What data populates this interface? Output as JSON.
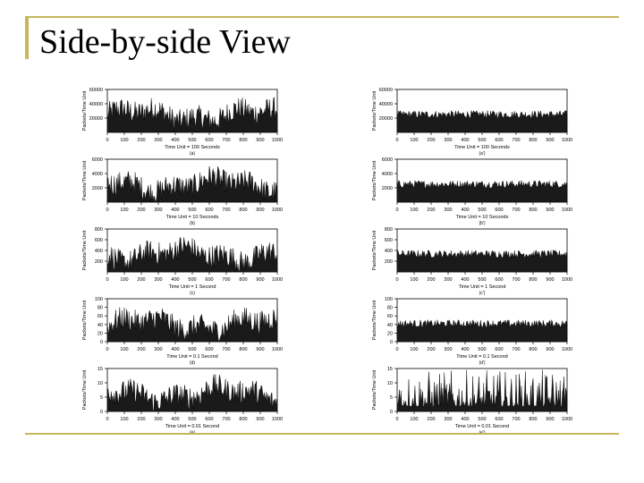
{
  "slide": {
    "title": "Side-by-side View",
    "accent_color": "#c8b75a"
  },
  "chart_data": [
    {
      "type": "area",
      "column": "left",
      "series_style": "bursty",
      "ylabel": "Packets/Time Unit",
      "xlabel": "Time Unit = 100 Seconds",
      "caption": "(a)",
      "ylim": [
        0,
        60000
      ],
      "yticks": [
        20000,
        40000,
        60000
      ],
      "xlim": [
        0,
        1000
      ],
      "xticks": [
        0,
        100,
        200,
        300,
        400,
        500,
        600,
        700,
        800,
        900,
        1000
      ]
    },
    {
      "type": "area",
      "column": "right",
      "series_style": "smooth",
      "ylabel": "Packets/Time Unit",
      "xlabel": "Time Unit = 100 Seconds",
      "caption": "(a')",
      "ylim": [
        0,
        60000
      ],
      "yticks": [
        20000,
        40000,
        60000
      ],
      "xlim": [
        0,
        1000
      ],
      "xticks": [
        0,
        100,
        200,
        300,
        400,
        500,
        600,
        700,
        800,
        900,
        1000
      ]
    },
    {
      "type": "area",
      "column": "left",
      "series_style": "bursty",
      "ylabel": "Packets/Time Unit",
      "xlabel": "Time Unit = 10 Seconds",
      "caption": "(b)",
      "ylim": [
        0,
        6000
      ],
      "yticks": [
        2000,
        4000,
        6000
      ],
      "xlim": [
        0,
        1000
      ],
      "xticks": [
        0,
        100,
        200,
        300,
        400,
        500,
        600,
        700,
        800,
        900,
        1000
      ]
    },
    {
      "type": "area",
      "column": "right",
      "series_style": "smooth",
      "ylabel": "Packets/Time Unit",
      "xlabel": "Time Unit = 10 Seconds",
      "caption": "(b')",
      "ylim": [
        0,
        6000
      ],
      "yticks": [
        2000,
        4000,
        6000
      ],
      "xlim": [
        0,
        1000
      ],
      "xticks": [
        0,
        100,
        200,
        300,
        400,
        500,
        600,
        700,
        800,
        900,
        1000
      ]
    },
    {
      "type": "area",
      "column": "left",
      "series_style": "bursty",
      "ylabel": "Packets/Time Unit",
      "xlabel": "Time Unit = 1 Second",
      "caption": "(c)",
      "ylim": [
        0,
        800
      ],
      "yticks": [
        200,
        400,
        600,
        800
      ],
      "xlim": [
        0,
        1000
      ],
      "xticks": [
        0,
        100,
        200,
        300,
        400,
        500,
        600,
        700,
        800,
        900,
        1000
      ]
    },
    {
      "type": "area",
      "column": "right",
      "series_style": "smooth",
      "ylabel": "Packets/Time Unit",
      "xlabel": "Time Unit = 1 Second",
      "caption": "(c')",
      "ylim": [
        0,
        800
      ],
      "yticks": [
        200,
        400,
        600,
        800
      ],
      "xlim": [
        0,
        1000
      ],
      "xticks": [
        0,
        100,
        200,
        300,
        400,
        500,
        600,
        700,
        800,
        900,
        1000
      ]
    },
    {
      "type": "area",
      "column": "left",
      "series_style": "bursty",
      "ylabel": "Packets/Time Unit",
      "xlabel": "Time Unit = 0.1 Second",
      "caption": "(d)",
      "ylim": [
        0,
        100
      ],
      "yticks": [
        0,
        20,
        40,
        60,
        80,
        100
      ],
      "xlim": [
        0,
        1000
      ],
      "xticks": [
        0,
        100,
        200,
        300,
        400,
        500,
        600,
        700,
        800,
        900,
        1000
      ]
    },
    {
      "type": "area",
      "column": "right",
      "series_style": "smooth",
      "ylabel": "Packets/Time Unit",
      "xlabel": "Time Unit = 0.1 Second",
      "caption": "(d')",
      "ylim": [
        0,
        100
      ],
      "yticks": [
        0,
        20,
        40,
        60,
        80,
        100
      ],
      "xlim": [
        0,
        1000
      ],
      "xticks": [
        0,
        100,
        200,
        300,
        400,
        500,
        600,
        700,
        800,
        900,
        1000
      ]
    },
    {
      "type": "area",
      "column": "left",
      "series_style": "bursty",
      "ylabel": "Packets/Time Unit",
      "xlabel": "Time Unit = 0.01 Second",
      "caption": "(e)",
      "ylim": [
        0,
        15
      ],
      "yticks": [
        0,
        5,
        10,
        15
      ],
      "xlim": [
        0,
        1000
      ],
      "xticks": [
        0,
        100,
        200,
        300,
        400,
        500,
        600,
        700,
        800,
        900,
        1000
      ]
    },
    {
      "type": "area",
      "column": "right",
      "series_style": "sparse",
      "ylabel": "Packets/Time Unit",
      "xlabel": "Time Unit = 0.01 Second",
      "caption": "(e')",
      "ylim": [
        0,
        15
      ],
      "yticks": [
        0,
        5,
        10,
        15
      ],
      "xlim": [
        0,
        1000
      ],
      "xticks": [
        0,
        100,
        200,
        300,
        400,
        500,
        600,
        700,
        800,
        900,
        1000
      ]
    }
  ]
}
